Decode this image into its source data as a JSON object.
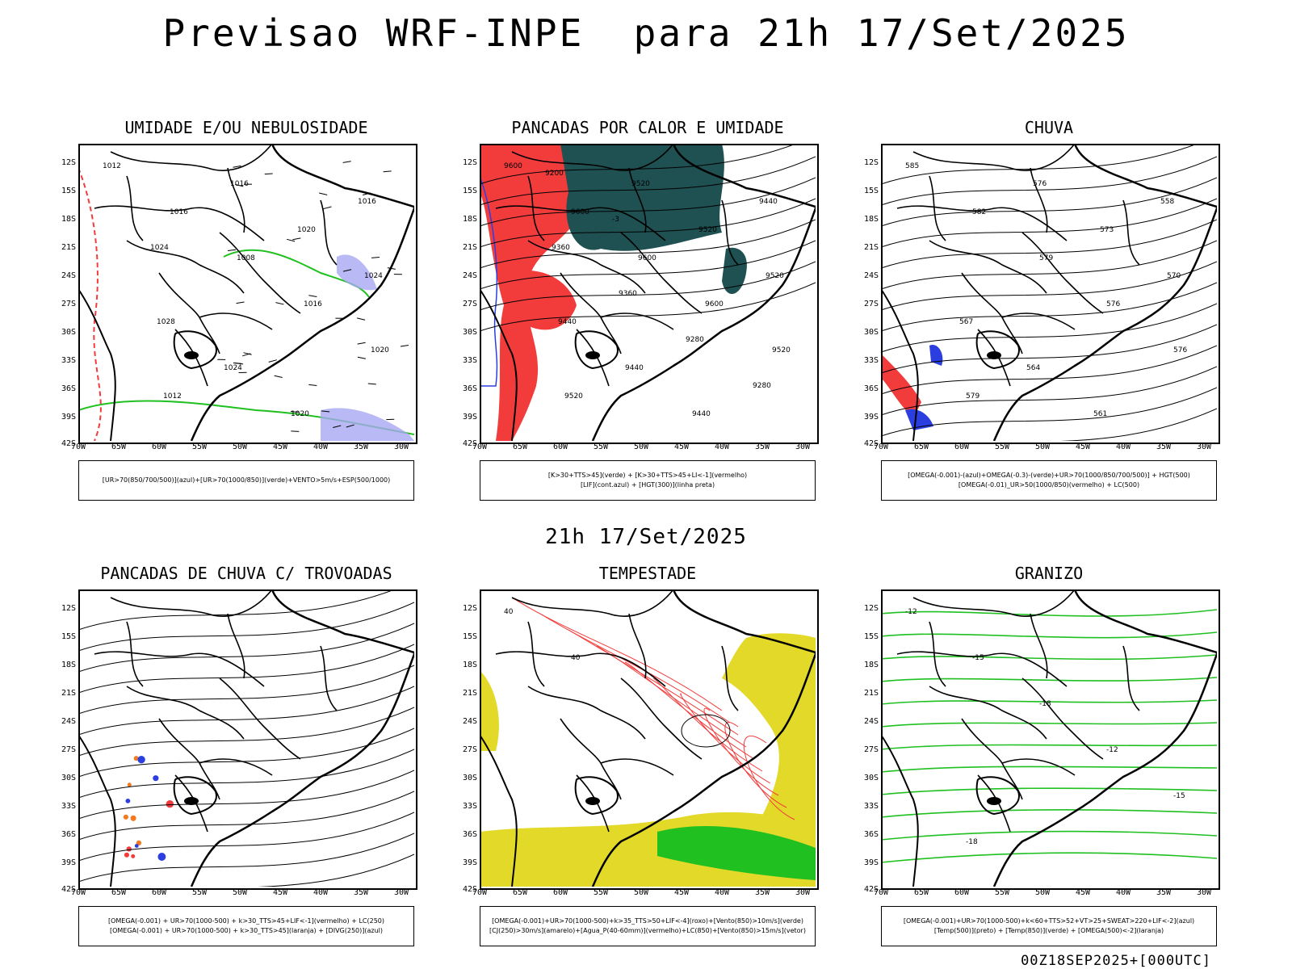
{
  "header": {
    "title": "Previsao WRF-INPE  para 21h 17/Set/2025"
  },
  "mid_title": "21h 17/Set/2025",
  "footer": "00Z18SEP2025+[000UTC]",
  "axes": {
    "lat": [
      "12S",
      "15S",
      "18S",
      "21S",
      "24S",
      "27S",
      "30S",
      "33S",
      "36S",
      "39S",
      "42S"
    ],
    "lon": [
      "70W",
      "65W",
      "60W",
      "55W",
      "50W",
      "45W",
      "40W",
      "35W",
      "30W"
    ]
  },
  "panels": [
    {
      "title": "UMIDADE E/OU NEBULOSIDADE",
      "legend": [
        "[UR>70(850/700/500)](azul)+[UR>70(1000/850)](verde)+VENTO>5m/s+ESP(500/1000)"
      ],
      "labels": [
        "1012",
        "1016",
        "1008",
        "1016",
        "1020",
        "1012",
        "1016",
        "1020",
        "1024",
        "1028",
        "1024",
        "1020",
        "1016",
        "1024"
      ]
    },
    {
      "title": "PANCADAS POR CALOR E UMIDADE",
      "legend": [
        "[K>30+TTS>45](verde) + [K>30+TTS>45+LI<-1](vermelho)",
        "[LIF](cont.azul) + [HGT(300)](linha preta)"
      ],
      "labels": [
        "9600",
        "9600",
        "9600",
        "9600",
        "9520",
        "9520",
        "9520",
        "9520",
        "9520",
        "9440",
        "9440",
        "9440",
        "9440",
        "9360",
        "9360",
        "9280",
        "9280",
        "9200",
        "-3"
      ]
    },
    {
      "title": "CHUVA",
      "legend": [
        "[OMEGA(-0.001)-(azul)+OMEGA(-0.3)-(verde)+UR>70(1000/850/700/500)] + HGT(500)",
        "[OMEGA(-0.01)_UR>50(1000/850)(vermelho) + LC(500)"
      ],
      "labels": [
        "585",
        "582",
        "579",
        "576",
        "576",
        "579",
        "576",
        "573",
        "570",
        "567",
        "564",
        "561",
        "558"
      ]
    },
    {
      "title": "PANCADAS DE CHUVA C/ TROVOADAS",
      "legend": [
        "[OMEGA(-0.001) + UR>70(1000-500) + k>30_TTS>45+LIF<-1](vermelho) + LC(250)",
        "[OMEGA(-0.001) + UR>70(1000-500) + k>30_TTS>45](laranja) + [DIVG(250)](azul)"
      ],
      "labels": []
    },
    {
      "title": "TEMPESTADE",
      "legend": [
        "[OMEGA(-0.001)+UR>70(1000-500)+k>35_TTS>50+LIF<-4](roxo)+[Vento(850)>10m/s](verde)",
        "[CJ(250)>30m/s](amarelo)+[Agua_P(40-60mm)](vermelho)+LC(850)+[Vento(850)>15m/s](vetor)"
      ],
      "labels": [
        "40",
        "40"
      ]
    },
    {
      "title": "GRANIZO",
      "legend": [
        "[OMEGA(-0.001)+UR>70(1000-500)+k<60+TTS>52+VT>25+SWEAT>220+LIF<-2](azul)",
        "[Temp(500)](preto) + [Temp(850)](verde) + [OMEGA(500)<-2](laranja)"
      ],
      "labels": [
        "-12",
        "-15",
        "-18",
        "-12",
        "-15",
        "-18"
      ]
    }
  ]
}
